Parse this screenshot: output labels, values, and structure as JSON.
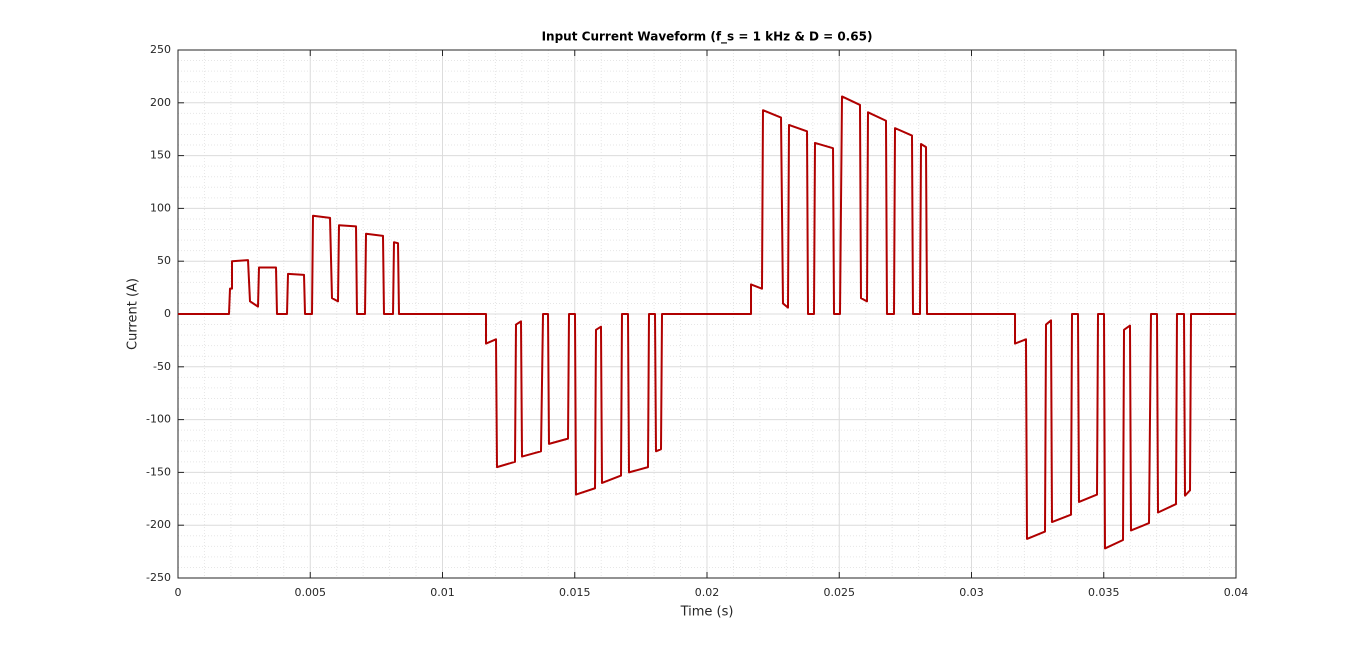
{
  "chart_data": {
    "type": "line",
    "title": "Input Current Waveform (f_s = 1 kHz & D = 0.65)",
    "x_label": "Time (s)",
    "y_label": "Current (A)",
    "xlim": [
      0,
      0.04
    ],
    "ylim": [
      -250,
      250
    ],
    "xticks": [
      0,
      0.005,
      0.01,
      0.015,
      0.02,
      0.025,
      0.03,
      0.035,
      0.04
    ],
    "yticks": [
      -250,
      -200,
      -150,
      -100,
      -50,
      0,
      50,
      100,
      150,
      200,
      250
    ],
    "grid": true,
    "minor_grid": true,
    "series": [
      {
        "color": "#b00000",
        "x": [
          0,
          0.001928,
          0.001966,
          0.002042,
          0.002042,
          0.002647,
          0.002722,
          0.003025,
          0.003062,
          0.003705,
          0.003743,
          0.004121,
          0.004159,
          0.004764,
          0.004802,
          0.005066,
          0.005104,
          0.005747,
          0.005822,
          0.006049,
          0.006087,
          0.00673,
          0.006767,
          0.00707,
          0.007108,
          0.00775,
          0.007788,
          0.008129,
          0.008166,
          0.008318,
          0.008355,
          0.011645,
          0.011645,
          0.012023,
          0.01206,
          0.012741,
          0.012779,
          0.012968,
          0.013006,
          0.013724,
          0.0138,
          0.013989,
          0.014026,
          0.014745,
          0.014783,
          0.015009,
          0.015047,
          0.015766,
          0.015803,
          0.015992,
          0.01603,
          0.016749,
          0.016786,
          0.017013,
          0.017051,
          0.017769,
          0.017807,
          0.018034,
          0.018072,
          0.018261,
          0.018299,
          0.021664,
          0.021664,
          0.022079,
          0.022117,
          0.022798,
          0.022873,
          0.023062,
          0.0231,
          0.023781,
          0.023819,
          0.024045,
          0.024083,
          0.024764,
          0.024802,
          0.025028,
          0.025104,
          0.025784,
          0.025822,
          0.026049,
          0.026087,
          0.026767,
          0.026805,
          0.02707,
          0.027108,
          0.02775,
          0.027788,
          0.028053,
          0.028091,
          0.02828,
          0.028318,
          0.031645,
          0.031645,
          0.03206,
          0.032098,
          0.032779,
          0.032817,
          0.033006,
          0.033043,
          0.033762,
          0.0338,
          0.034026,
          0.034064,
          0.034745,
          0.034783,
          0.035009,
          0.035047,
          0.035728,
          0.035766,
          0.035992,
          0.03603,
          0.036711,
          0.036786,
          0.037013,
          0.037051,
          0.037732,
          0.037769,
          0.038034,
          0.038072,
          0.038261,
          0.038299,
          0.04
        ],
        "values": [
          0,
          0,
          24,
          24,
          50,
          51,
          12,
          7,
          44,
          44,
          0,
          0,
          38,
          37,
          0,
          0,
          93,
          91,
          15,
          12,
          84,
          83,
          0,
          0,
          76,
          74,
          0,
          0,
          68,
          67,
          0,
          0,
          -28,
          -24,
          -145,
          -140,
          -10,
          -7,
          -135,
          -130,
          0,
          0,
          -123,
          -118,
          0,
          0,
          -171,
          -165,
          -15,
          -12,
          -160,
          -153,
          0,
          0,
          -150,
          -145,
          0,
          0,
          -130,
          -128,
          0,
          0,
          28,
          24,
          193,
          186,
          10,
          6,
          179,
          173,
          0,
          0,
          162,
          157,
          0,
          0,
          206,
          198,
          15,
          12,
          191,
          183,
          0,
          0,
          176,
          169,
          0,
          0,
          161,
          158,
          0,
          0,
          -28,
          -24,
          -213,
          -206,
          -10,
          -6,
          -197,
          -190,
          0,
          0,
          -178,
          -171,
          0,
          0,
          -222,
          -214,
          -15,
          -11,
          -205,
          -198,
          0,
          0,
          -188,
          -180,
          0,
          0,
          -172,
          -167,
          0,
          0
        ]
      }
    ]
  }
}
